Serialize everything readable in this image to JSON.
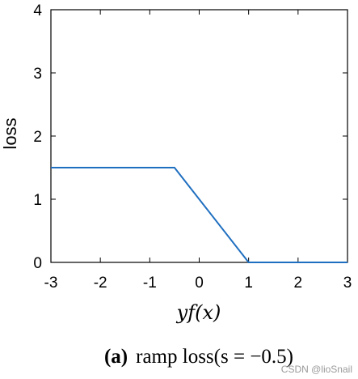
{
  "chart_data": {
    "type": "line",
    "xlabel": "yf(x)",
    "ylabel": "loss",
    "xlim": [
      -3,
      3
    ],
    "ylim": [
      0,
      4
    ],
    "xticks": [
      "-3",
      "-2",
      "-1",
      "0",
      "1",
      "2",
      "3"
    ],
    "yticks": [
      "0",
      "1",
      "2",
      "3",
      "4"
    ],
    "grid": false,
    "series": [
      {
        "color": "#1f6fc0",
        "points": [
          [
            -3,
            1.5
          ],
          [
            -0.5,
            1.5
          ],
          [
            1,
            0
          ],
          [
            3,
            0
          ]
        ]
      }
    ]
  },
  "caption": {
    "label": "(a)",
    "text": "ramp loss(s = −0.5)"
  },
  "watermark": "CSDN @lioSnail"
}
